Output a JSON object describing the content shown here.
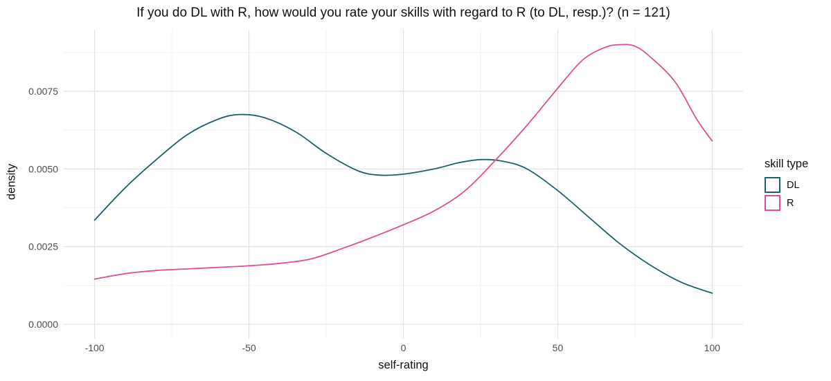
{
  "chart_data": {
    "type": "line",
    "title": "If you do DL with R, how would you rate your skills with regard to R (to DL, resp.)? (n = 121)",
    "xlabel": "self-rating",
    "ylabel": "density",
    "xlim": [
      -110,
      110
    ],
    "ylim": [
      -0.00047,
      0.00948
    ],
    "x_ticks": [
      -100,
      -50,
      0,
      50,
      100
    ],
    "x_tick_labels": [
      "-100",
      "-50",
      "0",
      "50",
      "100"
    ],
    "x_minor_ticks": [
      -75,
      -25,
      25,
      75
    ],
    "y_ticks": [
      0,
      0.0025,
      0.005,
      0.0075
    ],
    "y_tick_labels": [
      "0.0000",
      "0.0025",
      "0.0050",
      "0.0075"
    ],
    "y_minor_ticks": [
      0.00125,
      0.00375,
      0.00625,
      0.00875
    ],
    "grid": "on",
    "background": "#ffffff",
    "major_grid_color": "#e3e3e3",
    "minor_grid_color": "#f2f2f2",
    "tick_label_color": "#4d4d4d",
    "legend": {
      "title": "skill type",
      "position": "right",
      "entries": [
        {
          "label": "DL",
          "color": "#1d606b"
        },
        {
          "label": "R",
          "color": "#df4e93"
        }
      ]
    },
    "series": [
      {
        "name": "DL",
        "color": "#1d606b",
        "x": [
          -100,
          -90,
          -80,
          -70,
          -60,
          -53,
          -45,
          -35,
          -25,
          -15,
          -8,
          0,
          10,
          18,
          25,
          32,
          40,
          50,
          60,
          70,
          80,
          90,
          100
        ],
        "y": [
          0.00335,
          0.0044,
          0.0053,
          0.0061,
          0.0066,
          0.00675,
          0.00665,
          0.0062,
          0.0055,
          0.00495,
          0.0048,
          0.00483,
          0.005,
          0.0052,
          0.0053,
          0.00525,
          0.005,
          0.0043,
          0.00345,
          0.0026,
          0.0019,
          0.00135,
          0.001
        ]
      },
      {
        "name": "R",
        "color": "#df4e93",
        "x": [
          -100,
          -90,
          -80,
          -70,
          -60,
          -50,
          -40,
          -30,
          -20,
          -10,
          0,
          10,
          20,
          30,
          40,
          50,
          58,
          65,
          70,
          75,
          80,
          88,
          95,
          100
        ],
        "y": [
          0.00145,
          0.00163,
          0.00173,
          0.00178,
          0.00183,
          0.00188,
          0.00196,
          0.0021,
          0.00243,
          0.0028,
          0.0032,
          0.00365,
          0.0043,
          0.0053,
          0.0064,
          0.0076,
          0.0085,
          0.0089,
          0.009,
          0.00895,
          0.0086,
          0.0078,
          0.0066,
          0.0059
        ]
      }
    ]
  }
}
